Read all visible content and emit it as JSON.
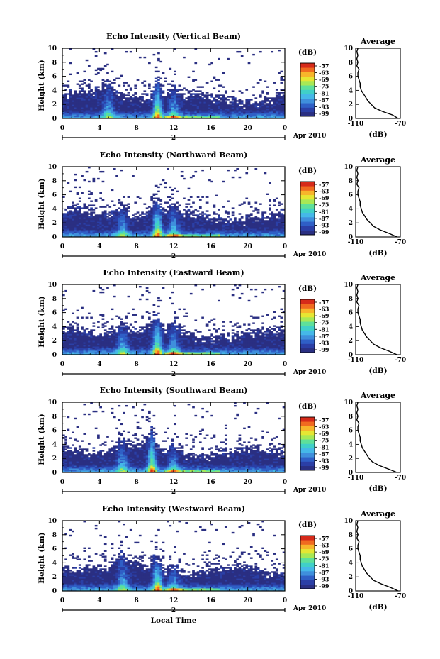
{
  "colors": {
    "scale": [
      "#2a2f82",
      "#2b3fa6",
      "#2f5fc6",
      "#3f8fdc",
      "#45b8e8",
      "#40d0c8",
      "#5ee09a",
      "#a8e855",
      "#e6e633",
      "#f7b52b",
      "#f06a20",
      "#d62a1a"
    ]
  },
  "chart_data": [
    {
      "type": "heatmap",
      "title": "Echo Intensity (Vertical Beam)",
      "xlabel": "",
      "ylabel": "Height (km)",
      "xlim": [
        0,
        24
      ],
      "ylim": [
        0,
        10
      ],
      "x_ticks": [
        "0",
        "4",
        "8",
        "12",
        "16",
        "20",
        "0"
      ],
      "y_ticks": [
        "0",
        "2",
        "4",
        "6",
        "8",
        "10"
      ],
      "date_marker": "2",
      "date_label": "Apr 2010",
      "colorbar": {
        "unit": "(dB)",
        "ticks": [
          "-57",
          "-63",
          "-69",
          "-75",
          "-81",
          "-87",
          "-93",
          "-99"
        ]
      },
      "surge_times_h": [
        5,
        10.3,
        12
      ],
      "average_profile": {
        "title": "Average",
        "xlabel": "(dB)",
        "xlim": [
          -110,
          -70
        ],
        "ylim": [
          0,
          10
        ],
        "x_ticks": [
          "-110",
          "-70"
        ],
        "y_ticks": [
          "0",
          "2",
          "4",
          "6",
          "8",
          "10"
        ],
        "height_km": [
          0,
          0.5,
          1,
          1.5,
          2,
          2.5,
          3,
          3.5,
          4,
          4.5,
          5,
          5.5,
          6,
          6.5,
          7,
          7.5,
          8,
          8.5,
          9,
          9.5,
          10
        ],
        "db": [
          -72,
          -77,
          -86,
          -93,
          -96,
          -99,
          -101,
          -103,
          -105,
          -106,
          -106,
          -107,
          -108,
          -108,
          -107,
          -109,
          -108,
          -109,
          -108,
          -109,
          -108
        ]
      }
    },
    {
      "type": "heatmap",
      "title": "Echo Intensity (Northward Beam)",
      "xlabel": "",
      "ylabel": "Height (km)",
      "xlim": [
        0,
        24
      ],
      "ylim": [
        0,
        10
      ],
      "x_ticks": [
        "0",
        "4",
        "8",
        "12",
        "16",
        "20",
        "0"
      ],
      "y_ticks": [
        "0",
        "2",
        "4",
        "6",
        "8",
        "10"
      ],
      "date_marker": "2",
      "date_label": "Apr 2010",
      "colorbar": {
        "unit": "(dB)",
        "ticks": [
          "-57",
          "-63",
          "-69",
          "-75",
          "-81",
          "-87",
          "-93",
          "-99"
        ]
      },
      "surge_times_h": [
        6.5,
        10.3,
        12
      ],
      "average_profile": {
        "title": "Average",
        "xlabel": "(dB)",
        "xlim": [
          -110,
          -70
        ],
        "ylim": [
          0,
          10
        ],
        "x_ticks": [
          "-110",
          "-70"
        ],
        "y_ticks": [
          "0",
          "2",
          "4",
          "6",
          "8",
          "10"
        ],
        "height_km": [
          0,
          0.5,
          1,
          1.5,
          2,
          2.5,
          3,
          3.5,
          4,
          4.5,
          5,
          5.5,
          6,
          6.5,
          7,
          7.5,
          8,
          8.5,
          9,
          9.5,
          10
        ],
        "db": [
          -73,
          -80,
          -88,
          -94,
          -97,
          -100,
          -102,
          -104,
          -105,
          -106,
          -106,
          -107,
          -108,
          -108,
          -107,
          -109,
          -108,
          -109,
          -108,
          -109,
          -108
        ]
      }
    },
    {
      "type": "heatmap",
      "title": "Echo Intensity (Eastward Beam)",
      "xlabel": "",
      "ylabel": "Height (km)",
      "xlim": [
        0,
        24
      ],
      "ylim": [
        0,
        10
      ],
      "x_ticks": [
        "0",
        "4",
        "8",
        "12",
        "16",
        "20",
        "0"
      ],
      "y_ticks": [
        "0",
        "2",
        "4",
        "6",
        "8",
        "10"
      ],
      "date_marker": "2",
      "date_label": "Apr 2010",
      "colorbar": {
        "unit": "(dB)",
        "ticks": [
          "-57",
          "-63",
          "-69",
          "-75",
          "-81",
          "-87",
          "-93",
          "-99"
        ]
      },
      "surge_times_h": [
        6.5,
        10.3,
        12
      ],
      "average_profile": {
        "title": "Average",
        "xlabel": "(dB)",
        "xlim": [
          -110,
          -70
        ],
        "ylim": [
          0,
          10
        ],
        "x_ticks": [
          "-110",
          "-70"
        ],
        "y_ticks": [
          "0",
          "2",
          "4",
          "6",
          "8",
          "10"
        ],
        "height_km": [
          0,
          0.5,
          1,
          1.5,
          2,
          2.5,
          3,
          3.5,
          4,
          4.5,
          5,
          5.5,
          6,
          6.5,
          7,
          7.5,
          8,
          8.5,
          9,
          9.5,
          10
        ],
        "db": [
          -73,
          -80,
          -88,
          -94,
          -97,
          -100,
          -102,
          -104,
          -105,
          -106,
          -106,
          -107,
          -108,
          -108,
          -107,
          -109,
          -108,
          -109,
          -108,
          -109,
          -108
        ]
      }
    },
    {
      "type": "heatmap",
      "title": "Echo Intensity (Southward Beam)",
      "xlabel": "",
      "ylabel": "Height (km)",
      "xlim": [
        0,
        24
      ],
      "ylim": [
        0,
        10
      ],
      "x_ticks": [
        "0",
        "4",
        "8",
        "12",
        "16",
        "20",
        "0"
      ],
      "y_ticks": [
        "0",
        "2",
        "4",
        "6",
        "8",
        "10"
      ],
      "date_marker": "2",
      "date_label": "Apr 2010",
      "colorbar": {
        "unit": "(dB)",
        "ticks": [
          "-57",
          "-63",
          "-69",
          "-75",
          "-81",
          "-87",
          "-93",
          "-99"
        ]
      },
      "surge_times_h": [
        6.5,
        9.7,
        12
      ],
      "average_profile": {
        "title": "Average",
        "xlabel": "(dB)",
        "xlim": [
          -110,
          -70
        ],
        "ylim": [
          0,
          10
        ],
        "x_ticks": [
          "-110",
          "-70"
        ],
        "y_ticks": [
          "0",
          "2",
          "4",
          "6",
          "8",
          "10"
        ],
        "height_km": [
          0,
          0.5,
          1,
          1.5,
          2,
          2.5,
          3,
          3.5,
          4,
          4.5,
          5,
          5.5,
          6,
          6.5,
          7,
          7.5,
          8,
          8.5,
          9,
          9.5,
          10
        ],
        "db": [
          -73,
          -81,
          -89,
          -95,
          -98,
          -100,
          -102,
          -104,
          -105,
          -106,
          -106,
          -107,
          -108,
          -108,
          -107,
          -109,
          -108,
          -109,
          -108,
          -109,
          -108
        ]
      }
    },
    {
      "type": "heatmap",
      "title": "Echo Intensity (Westward Beam)",
      "xlabel": "Local Time",
      "ylabel": "Height (km)",
      "xlim": [
        0,
        24
      ],
      "ylim": [
        0,
        10
      ],
      "x_ticks": [
        "0",
        "4",
        "8",
        "12",
        "16",
        "20",
        "0"
      ],
      "y_ticks": [
        "0",
        "2",
        "4",
        "6",
        "8",
        "10"
      ],
      "date_marker": "2",
      "date_label": "Apr 2010",
      "colorbar": {
        "unit": "(dB)",
        "ticks": [
          "-57",
          "-63",
          "-69",
          "-75",
          "-81",
          "-87",
          "-93",
          "-99"
        ]
      },
      "surge_times_h": [
        6.5,
        10.3,
        12
      ],
      "average_profile": {
        "title": "Average",
        "xlabel": "(dB)",
        "xlim": [
          -110,
          -70
        ],
        "ylim": [
          0,
          10
        ],
        "x_ticks": [
          "-110",
          "-70"
        ],
        "y_ticks": [
          "0",
          "2",
          "4",
          "6",
          "8",
          "10"
        ],
        "height_km": [
          0,
          0.5,
          1,
          1.5,
          2,
          2.5,
          3,
          3.5,
          4,
          4.5,
          5,
          5.5,
          6,
          6.5,
          7,
          7.5,
          8,
          8.5,
          9,
          9.5,
          10
        ],
        "db": [
          -72,
          -79,
          -87,
          -94,
          -97,
          -100,
          -102,
          -104,
          -105,
          -106,
          -106,
          -107,
          -108,
          -108,
          -107,
          -109,
          -108,
          -109,
          -108,
          -109,
          -108
        ]
      }
    }
  ]
}
